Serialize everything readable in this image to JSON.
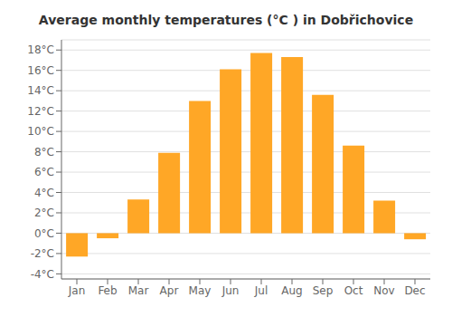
{
  "chart_data": {
    "type": "bar",
    "title": "Average monthly temperatures (°C ) in Dobřichovice",
    "categories": [
      "Jan",
      "Feb",
      "Mar",
      "Apr",
      "May",
      "Jun",
      "Jul",
      "Aug",
      "Sep",
      "Oct",
      "Nov",
      "Dec"
    ],
    "values": [
      -2.3,
      -0.5,
      3.3,
      7.9,
      13.0,
      16.1,
      17.7,
      17.3,
      13.6,
      8.6,
      3.2,
      -0.6
    ],
    "color": "#FFA726",
    "ylim": [
      -4.5,
      19.0
    ],
    "yticks": [
      {
        "value": -4,
        "label": "-4°C"
      },
      {
        "value": -2,
        "label": "-2°C"
      },
      {
        "value": 0,
        "label": "0°C"
      },
      {
        "value": 2,
        "label": "2°C"
      },
      {
        "value": 4,
        "label": "4°C"
      },
      {
        "value": 6,
        "label": "6°C"
      },
      {
        "value": 8,
        "label": "8°C"
      },
      {
        "value": 10,
        "label": "10°C"
      },
      {
        "value": 12,
        "label": "12°C"
      },
      {
        "value": 14,
        "label": "14°C"
      },
      {
        "value": 16,
        "label": "16°C"
      },
      {
        "value": 18,
        "label": "18°C"
      }
    ],
    "grid": true
  }
}
